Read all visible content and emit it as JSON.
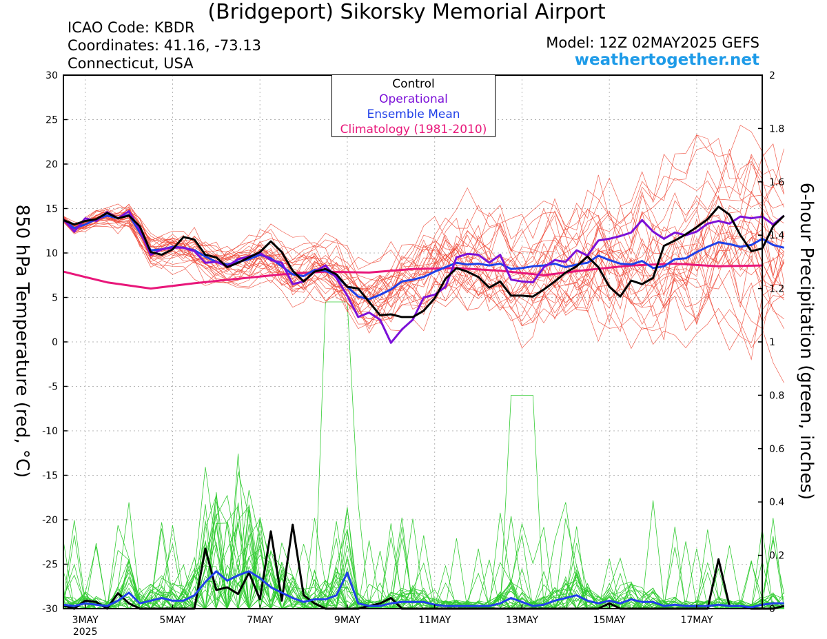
{
  "header": {
    "title": "(Bridgeport) Sikorsky Memorial Airport",
    "icao": "ICAO Code: KBDR",
    "coords": "Coordinates: 41.16, -73.13",
    "location": "Connecticut, USA",
    "model": "Model: 12Z 02MAY2025 GEFS",
    "site": "weathertogether.net"
  },
  "legend": {
    "control": "Control",
    "operational": "Operational",
    "mean": "Ensemble Mean",
    "climo": "Climatology (1981-2010)"
  },
  "colors": {
    "control": "#000000",
    "operational": "#7b10d8",
    "mean": "#2040e8",
    "climo": "#e8177a",
    "members_temp": "#ee4433",
    "members_precip": "#33cc33",
    "grid": "#b4b4b4",
    "site": "#1e9be8"
  },
  "chart_data": {
    "type": "line",
    "ylabel": "850 hPa Temperature (red, °C)",
    "y2label": "6-hour Precipitation (green, inches)",
    "ylim": [
      -30,
      30
    ],
    "y2lim": [
      0,
      2
    ],
    "yticks": [
      30,
      25,
      20,
      15,
      10,
      5,
      0,
      -5,
      -10,
      -15,
      -20,
      -25,
      -30
    ],
    "y2ticks": [
      "2",
      "1.8",
      "1.6",
      "1.4",
      "1.2",
      "1",
      "0.8",
      "0.6",
      "0.4",
      "0.2",
      "0"
    ],
    "x_unit": "days since 12Z 02MAY2025",
    "xlim": [
      0,
      16
    ],
    "xticks": [
      {
        "x": 0.5,
        "label": "3MAY"
      },
      {
        "x": 2.5,
        "label": "5MAY"
      },
      {
        "x": 4.5,
        "label": "7MAY"
      },
      {
        "x": 6.5,
        "label": "9MAY"
      },
      {
        "x": 8.5,
        "label": "11MAY"
      },
      {
        "x": 10.5,
        "label": "13MAY"
      },
      {
        "x": 12.5,
        "label": "15MAY"
      },
      {
        "x": 14.5,
        "label": "17MAY"
      }
    ],
    "year_label": "2025",
    "grid": true,
    "temp_series": [
      {
        "name": "Control",
        "role": "control",
        "x_step": 0.25,
        "values": [
          13.7,
          13.2,
          13.6,
          13.8,
          14.5,
          13.9,
          14.2,
          13.0,
          10.1,
          9.8,
          10.4,
          11.8,
          11.5,
          9.8,
          9.5,
          8.4,
          8.9,
          9.5,
          10.1,
          11.3,
          10.1,
          8.0,
          6.8,
          7.9,
          8.2,
          7.6,
          6.2,
          6.0,
          4.5,
          3.0,
          3.1,
          2.8,
          2.8,
          3.5,
          4.9,
          7.1,
          8.3,
          7.9,
          7.3,
          6.1,
          6.8,
          5.2,
          5.2,
          5.1,
          5.9,
          6.8,
          7.8,
          8.5,
          9.6,
          8.4,
          6.2,
          5.1,
          6.9,
          6.5,
          7.2,
          10.8,
          11.4,
          12.1,
          12.9,
          13.8,
          15.2,
          14.3,
          12.0,
          10.2,
          10.5,
          13.0,
          14.2
        ]
      },
      {
        "name": "Operational",
        "role": "operational",
        "x_step": 0.25,
        "values": [
          13.8,
          12.4,
          13.9,
          13.6,
          14.6,
          13.9,
          14.7,
          12.6,
          9.8,
          10.4,
          10.6,
          10.6,
          10.2,
          8.9,
          9.0,
          8.5,
          9.3,
          9.6,
          10.0,
          9.2,
          8.9,
          6.5,
          6.8,
          7.9,
          8.6,
          7.2,
          5.2,
          2.8,
          3.3,
          2.5,
          -0.1,
          1.4,
          2.5,
          5.0,
          5.3,
          6.2,
          9.5,
          9.9,
          9.8,
          8.9,
          9.8,
          7.0,
          6.8,
          6.7,
          8.4,
          9.2,
          9.0,
          10.3,
          9.7,
          11.4,
          11.6,
          11.9,
          12.3,
          13.7,
          12.4,
          11.6,
          12.3,
          12.0,
          12.4,
          13.3,
          13.6,
          13.3,
          14.1,
          13.9,
          14.1,
          13.2,
          14.2
        ]
      },
      {
        "name": "Ensemble Mean",
        "role": "mean",
        "x_step": 0.25,
        "values": [
          13.7,
          12.8,
          13.2,
          13.8,
          14.2,
          13.9,
          14.3,
          12.3,
          10.3,
          10.4,
          10.7,
          10.6,
          10.3,
          9.6,
          9.0,
          8.7,
          9.0,
          9.3,
          9.8,
          9.4,
          8.5,
          7.6,
          7.4,
          8.1,
          8.0,
          7.4,
          6.2,
          5.1,
          4.8,
          5.3,
          5.9,
          6.8,
          7.0,
          7.3,
          7.9,
          8.4,
          8.9,
          8.7,
          8.8,
          8.6,
          8.8,
          8.2,
          8.3,
          8.5,
          8.6,
          8.8,
          8.4,
          8.7,
          8.9,
          9.7,
          9.2,
          8.8,
          8.7,
          9.1,
          8.3,
          8.5,
          9.3,
          9.4,
          10.1,
          10.7,
          11.2,
          11.0,
          10.7,
          10.9,
          11.6,
          10.9,
          10.6
        ]
      },
      {
        "name": "Climatology (1981-2010)",
        "role": "climo",
        "x_values": [
          0,
          1,
          2,
          3,
          4,
          5,
          6,
          7,
          8,
          9,
          10,
          11,
          12,
          13,
          14,
          15,
          16
        ],
        "values": [
          7.9,
          6.7,
          6.0,
          6.6,
          7.1,
          7.6,
          7.9,
          7.8,
          8.2,
          8.3,
          8.0,
          7.5,
          8.1,
          8.6,
          8.8,
          8.5,
          8.6
        ]
      }
    ],
    "precip_series": [
      {
        "name": "Control",
        "role": "control",
        "x_step": 0.25,
        "values": [
          0.012,
          0.0,
          0.03,
          0.025,
          0.0,
          0.058,
          0.02,
          0.0,
          0.0,
          0.0,
          0.0,
          0.0,
          0.0,
          0.225,
          0.07,
          0.08,
          0.055,
          0.135,
          0.035,
          0.29,
          0.03,
          0.315,
          0.05,
          0.02,
          0.0,
          0.0,
          0.0,
          0.0,
          0.01,
          0.02,
          0.04,
          0.0,
          0.0,
          0.0,
          0.0,
          0.0,
          0.0,
          0.0,
          0.0,
          0.0,
          0.0,
          0.0,
          0.0,
          0.0,
          0.0,
          0.0,
          0.0,
          0.0,
          0.0,
          0.0,
          0.02,
          0.0,
          0.0,
          0.0,
          0.0,
          0.0,
          0.0,
          0.0,
          0.0,
          0.0,
          0.185,
          0.01,
          0.01,
          0.0,
          0.0,
          0.0,
          0.01
        ]
      },
      {
        "name": "Ensemble Mean",
        "role": "mean",
        "x_step": 0.25,
        "values": [
          0.015,
          0.01,
          0.02,
          0.015,
          0.01,
          0.03,
          0.06,
          0.02,
          0.03,
          0.04,
          0.03,
          0.03,
          0.05,
          0.1,
          0.14,
          0.105,
          0.125,
          0.14,
          0.115,
          0.08,
          0.06,
          0.04,
          0.025,
          0.035,
          0.035,
          0.05,
          0.135,
          0.02,
          0.01,
          0.01,
          0.02,
          0.025,
          0.025,
          0.025,
          0.015,
          0.01,
          0.01,
          0.01,
          0.01,
          0.01,
          0.02,
          0.04,
          0.025,
          0.01,
          0.015,
          0.03,
          0.04,
          0.05,
          0.03,
          0.02,
          0.03,
          0.02,
          0.035,
          0.025,
          0.025,
          0.01,
          0.015,
          0.01,
          0.01,
          0.01,
          0.015,
          0.01,
          0.01,
          0.005,
          0.015,
          0.02,
          0.02
        ]
      }
    ],
    "temp_members_count": 30,
    "precip_members_count": 30
  }
}
